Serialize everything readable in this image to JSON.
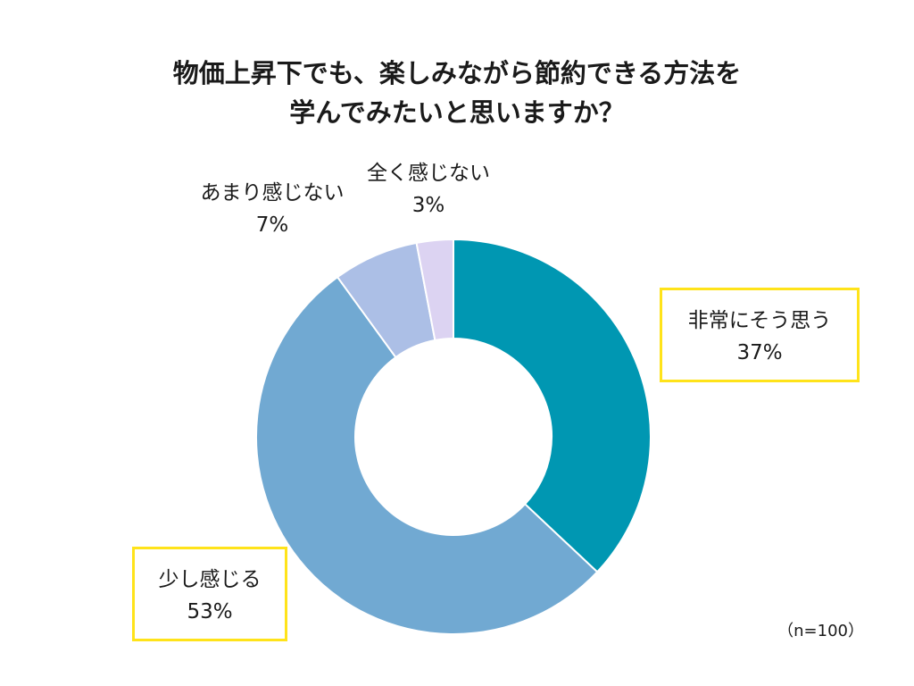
{
  "title": {
    "line1": "物価上昇下でも、楽しみながら節約できる方法を",
    "line2": "学んでみたいと思いますか？"
  },
  "note": "（n=100）",
  "chart_data": {
    "type": "pie",
    "variant": "donut",
    "title": "物価上昇下でも、楽しみながら節約できる方法を学んでみたいと思いますか？",
    "categories": [
      "非常にそう思う",
      "少し感じる",
      "あまり感じない",
      "全く感じない"
    ],
    "values": [
      37,
      53,
      7,
      3
    ],
    "value_labels": [
      "37%",
      "53%",
      "7%",
      "3%"
    ],
    "colors": [
      "#0097b2",
      "#71a9d2",
      "#acbfe6",
      "#dcd3f2"
    ],
    "highlight_color": "#ffe31a",
    "highlighted": [
      "非常にそう思う",
      "少し感じる"
    ],
    "start": "12 o'clock, clockwise",
    "sample_size": "n=100"
  }
}
